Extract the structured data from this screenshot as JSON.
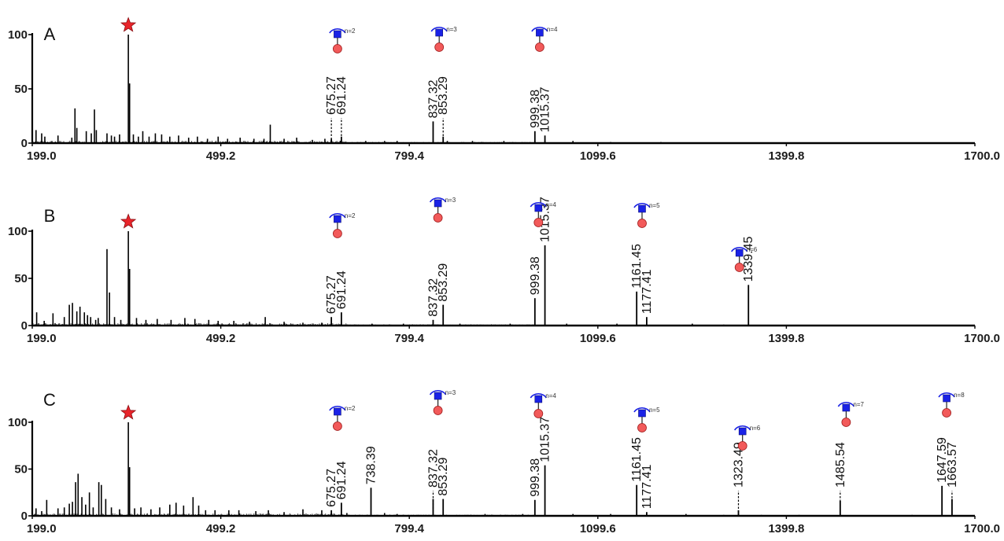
{
  "chart_data": {
    "type": "mass-spectrum",
    "xlim": [
      199.0,
      1700.0
    ],
    "ylim": [
      0,
      100
    ],
    "grid": false,
    "x_ticks": [
      "199.0",
      "499.2",
      "799.4",
      "1099.6",
      "1399.8",
      "1700.0"
    ],
    "y_ticks": [
      "0",
      "50",
      "100"
    ],
    "base_peak_marker": "red-star",
    "panels": [
      {
        "label": "A",
        "base_peak_mz": 352,
        "spikes": [
          [
            205,
            12
          ],
          [
            214,
            9
          ],
          [
            219,
            6
          ],
          [
            240,
            7
          ],
          [
            262,
            5
          ],
          [
            267,
            32
          ],
          [
            270,
            14
          ],
          [
            285,
            11
          ],
          [
            293,
            9
          ],
          [
            298,
            31
          ],
          [
            301,
            12
          ],
          [
            318,
            9
          ],
          [
            325,
            7
          ],
          [
            330,
            6
          ],
          [
            338,
            8
          ],
          [
            352,
            100
          ],
          [
            354,
            55
          ],
          [
            360,
            8
          ],
          [
            368,
            6
          ],
          [
            375,
            11
          ],
          [
            385,
            6
          ],
          [
            395,
            9
          ],
          [
            405,
            8
          ],
          [
            418,
            6
          ],
          [
            432,
            7
          ],
          [
            448,
            5
          ],
          [
            462,
            6
          ],
          [
            478,
            4
          ],
          [
            495,
            6
          ],
          [
            510,
            4
          ],
          [
            530,
            5
          ],
          [
            552,
            4
          ],
          [
            568,
            4
          ],
          [
            578,
            17
          ],
          [
            600,
            4
          ],
          [
            620,
            5
          ],
          [
            645,
            3
          ],
          [
            665,
            4
          ],
          [
            690,
            2
          ],
          [
            730,
            2
          ],
          [
            760,
            2
          ],
          [
            780,
            2
          ],
          [
            860,
            2
          ],
          [
            900,
            2
          ],
          [
            950,
            2
          ],
          [
            1060,
            2
          ],
          [
            1120,
            1
          ],
          [
            1200,
            1
          ]
        ],
        "labeled_peaks": [
          {
            "label": "675.27",
            "mz": 675.27,
            "intensity": 4,
            "dashed": true
          },
          {
            "label": "691.24",
            "mz": 691.24,
            "intensity": 6,
            "dashed": true
          },
          {
            "label": "837.32",
            "mz": 837.32,
            "intensity": 20,
            "dashed": false
          },
          {
            "label": "853.29",
            "mz": 853.29,
            "intensity": 6,
            "dashed": true
          },
          {
            "label": "999.38",
            "mz": 999.38,
            "intensity": 11,
            "dashed": false
          },
          {
            "label": "1015.37",
            "mz": 1015.37,
            "intensity": 7,
            "dashed": false
          }
        ],
        "glycans": [
          {
            "n": "n=2",
            "mz": 685
          },
          {
            "n": "n=3",
            "mz": 847
          },
          {
            "n": "n=4",
            "mz": 1007
          }
        ]
      },
      {
        "label": "B",
        "base_peak_mz": 352,
        "spikes": [
          [
            206,
            14
          ],
          [
            218,
            5
          ],
          [
            232,
            13
          ],
          [
            250,
            9
          ],
          [
            258,
            22
          ],
          [
            263,
            24
          ],
          [
            270,
            15
          ],
          [
            275,
            20
          ],
          [
            282,
            14
          ],
          [
            287,
            11
          ],
          [
            292,
            9
          ],
          [
            300,
            6
          ],
          [
            304,
            8
          ],
          [
            318,
            81
          ],
          [
            322,
            35
          ],
          [
            330,
            9
          ],
          [
            340,
            6
          ],
          [
            352,
            100
          ],
          [
            354,
            60
          ],
          [
            365,
            8
          ],
          [
            380,
            6
          ],
          [
            398,
            7
          ],
          [
            420,
            6
          ],
          [
            442,
            8
          ],
          [
            458,
            7
          ],
          [
            480,
            6
          ],
          [
            495,
            5
          ],
          [
            520,
            5
          ],
          [
            545,
            4
          ],
          [
            570,
            9
          ],
          [
            600,
            4
          ],
          [
            630,
            3
          ],
          [
            660,
            3
          ],
          [
            740,
            2
          ],
          [
            790,
            2
          ],
          [
            880,
            2
          ],
          [
            960,
            2
          ],
          [
            1050,
            2
          ],
          [
            1130,
            2
          ],
          [
            1250,
            2
          ],
          [
            1300,
            1
          ]
        ],
        "labeled_peaks": [
          {
            "label": "675.27",
            "mz": 675.27,
            "intensity": 9,
            "dashed": false
          },
          {
            "label": "691.24",
            "mz": 691.24,
            "intensity": 14,
            "dashed": false
          },
          {
            "label": "837.32",
            "mz": 837.32,
            "intensity": 6,
            "dashed": false
          },
          {
            "label": "853.29",
            "mz": 853.29,
            "intensity": 22,
            "dashed": false
          },
          {
            "label": "999.38",
            "mz": 999.38,
            "intensity": 29,
            "dashed": false
          },
          {
            "label": "1015.37",
            "mz": 1015.37,
            "intensity": 85,
            "dashed": false
          },
          {
            "label": "1161.45",
            "mz": 1161.45,
            "intensity": 36,
            "dashed": true
          },
          {
            "label": "1177.41",
            "mz": 1177.41,
            "intensity": 9,
            "dashed": false
          },
          {
            "label": "1339.45",
            "mz": 1339.45,
            "intensity": 43,
            "dashed": true
          }
        ],
        "glycans": [
          {
            "n": "n=2",
            "mz": 685
          },
          {
            "n": "n=3",
            "mz": 845
          },
          {
            "n": "n=4",
            "mz": 1005
          },
          {
            "n": "n=5",
            "mz": 1170
          },
          {
            "n": "n=6",
            "mz": 1325
          }
        ]
      },
      {
        "label": "C",
        "base_peak_mz": 352,
        "spikes": [
          [
            205,
            8
          ],
          [
            214,
            5
          ],
          [
            222,
            17
          ],
          [
            240,
            8
          ],
          [
            250,
            9
          ],
          [
            258,
            13
          ],
          [
            263,
            15
          ],
          [
            268,
            36
          ],
          [
            272,
            45
          ],
          [
            278,
            20
          ],
          [
            284,
            12
          ],
          [
            290,
            25
          ],
          [
            296,
            9
          ],
          [
            305,
            36
          ],
          [
            309,
            33
          ],
          [
            316,
            18
          ],
          [
            325,
            9
          ],
          [
            338,
            7
          ],
          [
            352,
            100
          ],
          [
            354,
            52
          ],
          [
            362,
            8
          ],
          [
            372,
            9
          ],
          [
            388,
            7
          ],
          [
            402,
            9
          ],
          [
            418,
            12
          ],
          [
            428,
            14
          ],
          [
            440,
            11
          ],
          [
            455,
            20
          ],
          [
            464,
            11
          ],
          [
            475,
            6
          ],
          [
            490,
            6
          ],
          [
            512,
            6
          ],
          [
            528,
            6
          ],
          [
            555,
            5
          ],
          [
            575,
            6
          ],
          [
            600,
            4
          ],
          [
            630,
            7
          ],
          [
            660,
            6
          ],
          [
            700,
            3
          ],
          [
            760,
            3
          ],
          [
            780,
            2
          ],
          [
            920,
            2
          ],
          [
            980,
            2
          ],
          [
            1060,
            2
          ],
          [
            1120,
            2
          ],
          [
            1240,
            2
          ],
          [
            1300,
            1
          ],
          [
            1360,
            1
          ],
          [
            1420,
            1
          ],
          [
            1600,
            1
          ]
        ],
        "labeled_peaks": [
          {
            "label": "675.27",
            "mz": 675.27,
            "intensity": 6,
            "dashed": false
          },
          {
            "label": "691.24",
            "mz": 691.24,
            "intensity": 14,
            "dashed": false
          },
          {
            "label": "738.39",
            "mz": 738.39,
            "intensity": 30,
            "dashed": false
          },
          {
            "label": "837.32",
            "mz": 837.32,
            "intensity": 18,
            "dashed": true
          },
          {
            "label": "853.29",
            "mz": 853.29,
            "intensity": 18,
            "dashed": false
          },
          {
            "label": "999.38",
            "mz": 999.38,
            "intensity": 17,
            "dashed": false
          },
          {
            "label": "1015.37",
            "mz": 1015.37,
            "intensity": 54,
            "dashed": false
          },
          {
            "label": "1161.45",
            "mz": 1161.45,
            "intensity": 33,
            "dashed": true
          },
          {
            "label": "1177.41",
            "mz": 1177.41,
            "intensity": 4,
            "dashed": false
          },
          {
            "label": "1323.49",
            "mz": 1323.49,
            "intensity": 6,
            "dashed": true
          },
          {
            "label": "1485.54",
            "mz": 1485.54,
            "intensity": 16,
            "dashed": true
          },
          {
            "label": "1647.59",
            "mz": 1647.59,
            "intensity": 32,
            "dashed": true
          },
          {
            "label": "1663.57",
            "mz": 1663.57,
            "intensity": 18,
            "dashed": true
          }
        ],
        "glycans": [
          {
            "n": "n=2",
            "mz": 685
          },
          {
            "n": "n=3",
            "mz": 845
          },
          {
            "n": "n=4",
            "mz": 1005
          },
          {
            "n": "n=5",
            "mz": 1170
          },
          {
            "n": "n=6",
            "mz": 1330
          },
          {
            "n": "n=7",
            "mz": 1495
          },
          {
            "n": "n=8",
            "mz": 1655
          }
        ]
      }
    ]
  },
  "colors": {
    "axis": "#000000",
    "trace": "#000000",
    "tick_label": "#1c1c1c",
    "star": "#e8242a",
    "hexnac_square": "#1a22e6",
    "hexose_circle": "#f25a5a",
    "bracket": "#1a22e6"
  }
}
